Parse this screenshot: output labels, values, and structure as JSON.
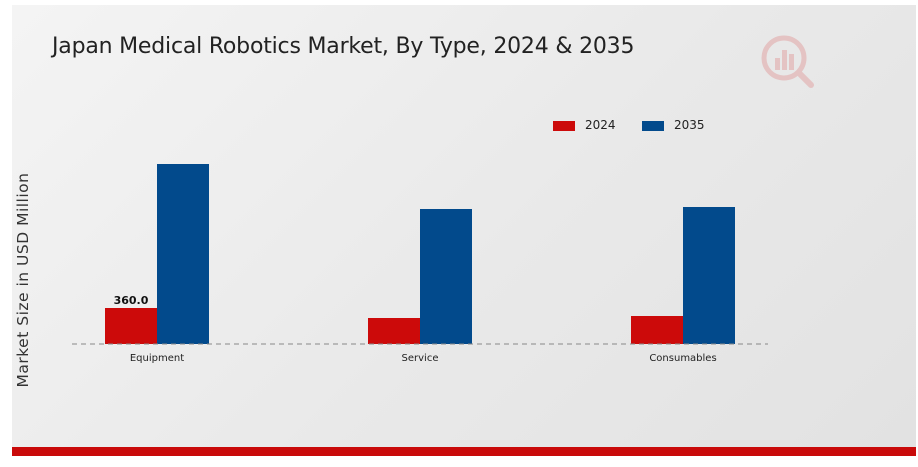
{
  "chart_data": {
    "type": "bar",
    "title": "Japan Medical Robotics Market, By Type, 2024 & 2035",
    "xlabel": "",
    "ylabel": "Market Size in USD Million",
    "categories": [
      "Equipment",
      "Service",
      "Consumables"
    ],
    "series": [
      {
        "name": "2024",
        "values": [
          360.0,
          260.0,
          280.0
        ],
        "color": "#cc0a0a"
      },
      {
        "name": "2035",
        "values": [
          1800.0,
          1350.0,
          1370.0
        ],
        "color": "#024a8c"
      }
    ],
    "data_labels": [
      {
        "series": "2024",
        "category": "Equipment",
        "text": "360.0"
      }
    ],
    "ylim": [
      0,
      2200
    ],
    "grid": false,
    "legend_position": "top-right",
    "baseline_style": "dashed"
  },
  "logo_icon": "market-research-logo"
}
